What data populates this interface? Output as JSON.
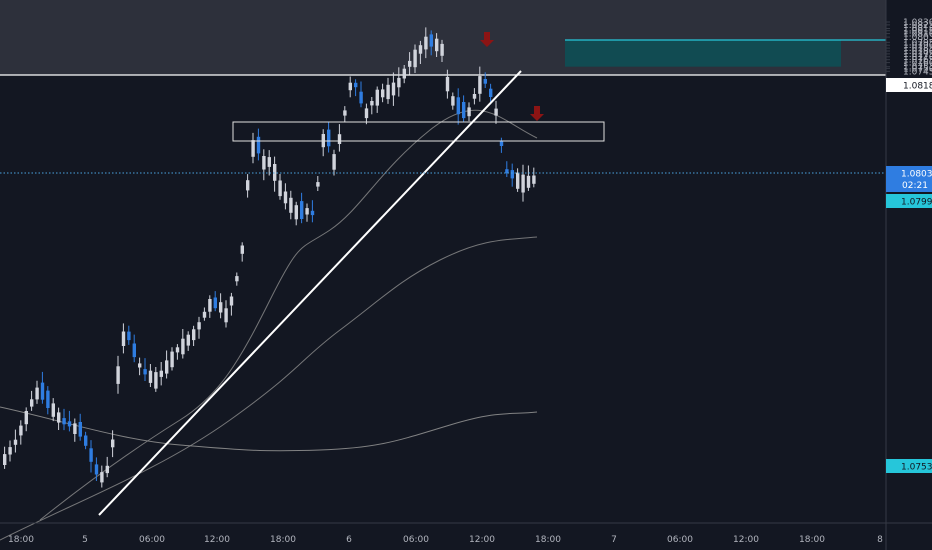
{
  "colors": {
    "background": "#131722",
    "axis_text": "#b2b5be",
    "candle_up": "#d1d4dc",
    "candle_down": "#2f7de1",
    "ma": "#8e8e8e",
    "trendline": "#ffffff",
    "current_line": "#4aa3e0",
    "stop_box": "rgba(170,170,180,0.33)",
    "target_box": "#114b52",
    "entry_line": "#26c6da",
    "arrow": "#8b1414",
    "resistance_zone": "#2d303b"
  },
  "price_tags": {
    "current_price": "1.08039",
    "countdown": "02:21",
    "level_1": "1.08188",
    "entry": "1.07990",
    "target": "1.07530"
  },
  "chart_data": {
    "type": "candlestick",
    "y_ticks": [
      "1.08300",
      "1.08250",
      "1.08188",
      "1.08150",
      "1.08100",
      "1.08039",
      "1.07950",
      "1.07900",
      "1.07850",
      "1.07800",
      "1.07750",
      "1.07700",
      "1.07650",
      "1.07600",
      "1.07530",
      "1.07500",
      "1.07450"
    ],
    "x_ticks": [
      "18:00",
      "5",
      "06:00",
      "12:00",
      "18:00",
      "6",
      "06:00",
      "12:00",
      "18:00",
      "7",
      "06:00",
      "12:00",
      "18:00",
      "8"
    ],
    "current_price": 1.08039,
    "horizontal_line": 1.0821,
    "resistance_zone": [
      1.0821,
      1.0834
    ],
    "supply_box": [
      1.08095,
      1.0813
    ],
    "trade": {
      "stop": 1.08188,
      "entry": 1.0799,
      "target": 1.0753
    },
    "candles_sampled_closes": [
      1.0752,
      1.0758,
      1.0765,
      1.0768,
      1.077,
      1.0755,
      1.0745,
      1.0738,
      1.0748,
      1.076,
      1.078,
      1.0792,
      1.0815,
      1.0833,
      1.0799,
      1.0828,
      1.0846,
      1.0821,
      1.082,
      1.082,
      1.0828,
      1.083,
      1.0847,
      1.085,
      1.084,
      1.0838,
      1.0847,
      1.0848,
      1.083,
      1.084,
      1.081,
      1.0793,
      1.0846,
      1.0859,
      1.0873,
      1.0898,
      1.0917,
      1.0928,
      1.0922,
      1.0936,
      1.0951,
      1.0946,
      1.0964,
      1.0979,
      1.1002,
      1.1021,
      1.1011,
      1.1026,
      1.1013,
      1.1005,
      1.0999,
      1.1,
      1.1002,
      1.0941,
      1.0943,
      1.096,
      1.0948,
      1.0963,
      1.0961
    ]
  }
}
